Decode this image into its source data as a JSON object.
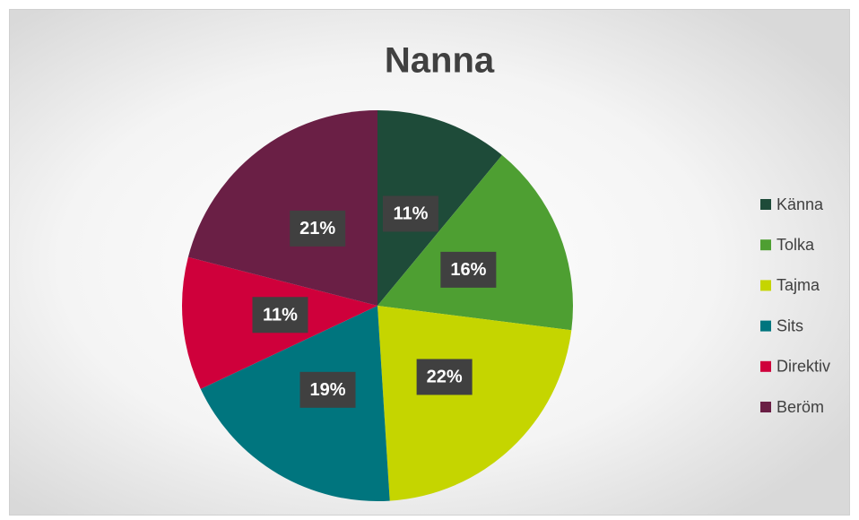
{
  "chart_data": {
    "type": "pie",
    "title": "Nanna",
    "categories": [
      "Känna",
      "Tolka",
      "Tajma",
      "Sits",
      "Direktiv",
      "Beröm"
    ],
    "values": [
      11,
      16,
      22,
      19,
      11,
      21
    ],
    "value_labels": [
      "11%",
      "16%",
      "22%",
      "19%",
      "11%",
      "21%"
    ],
    "colors": [
      "#1e4b39",
      "#4e9f32",
      "#c5d500",
      "#00757e",
      "#cf003b",
      "#6a1f45"
    ],
    "legend": "right"
  }
}
